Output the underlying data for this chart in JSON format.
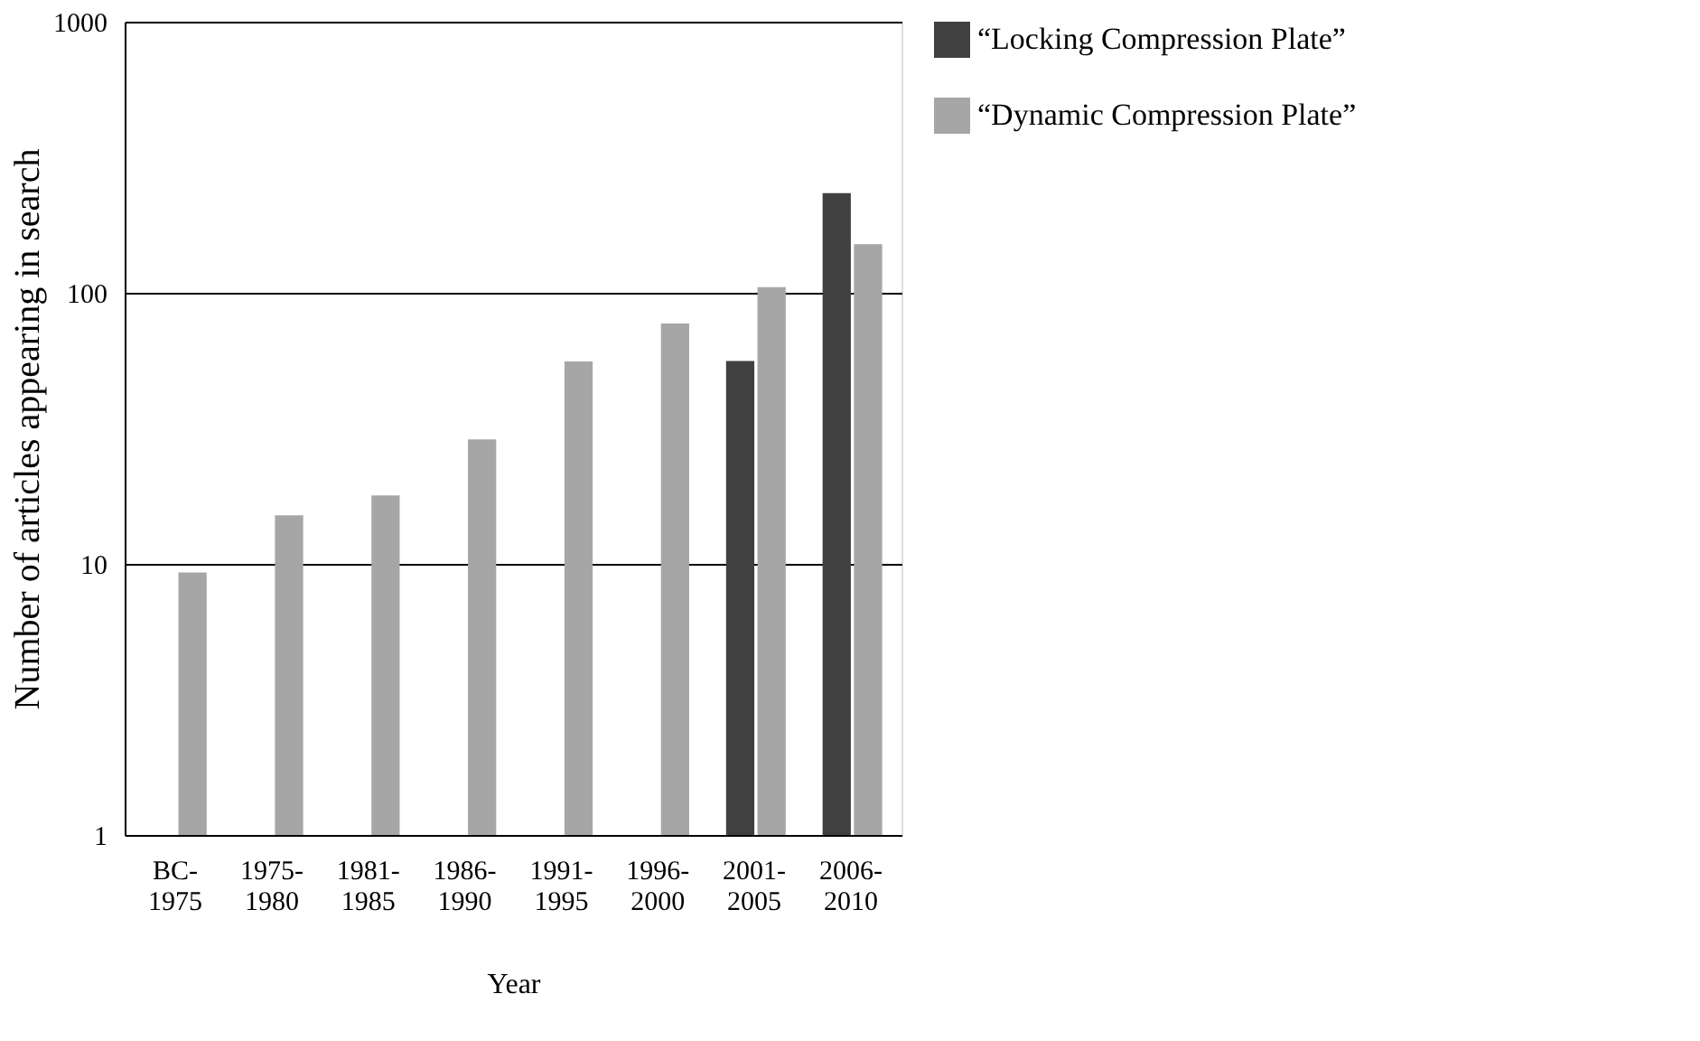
{
  "chart_data": {
    "type": "bar",
    "xlabel": "Year",
    "ylabel": "Number of articles appearing in search",
    "categories": [
      "BC-1975",
      "1975-1980",
      "1981-1985",
      "1986-1990",
      "1991-1995",
      "1996-2000",
      "2001-2005",
      "2006-2010"
    ],
    "series": [
      {
        "name": "“Locking Compression Plate”",
        "color": "#404040",
        "values": [
          null,
          null,
          null,
          null,
          null,
          null,
          56,
          233
        ]
      },
      {
        "name": "“Dynamic Compression Plate”",
        "color": "#a6a6a6",
        "values": [
          9.3,
          15.1,
          17.9,
          28.8,
          55.8,
          77,
          105,
          151
        ]
      }
    ],
    "log": "y",
    "ylim": [
      1,
      1000
    ],
    "yticks": [
      1,
      10,
      100,
      1000
    ],
    "grid": "y",
    "legend": "right"
  }
}
